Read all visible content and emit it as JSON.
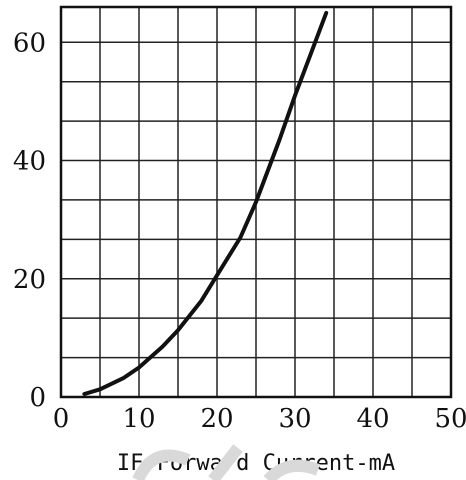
{
  "chart_data": {
    "type": "line",
    "title": "",
    "xlabel": "IF-Forward Current-mA",
    "ylabel": "",
    "xlim": [
      0,
      50
    ],
    "ylim": [
      0,
      66
    ],
    "x_ticks": [
      0,
      10,
      20,
      30,
      40,
      50
    ],
    "y_ticks": [
      0,
      20,
      40,
      60
    ],
    "x_grid_step": 5,
    "y_grid_step": 6.67,
    "grid": true,
    "series": [
      {
        "x": [
          3,
          5,
          8,
          10,
          13,
          15,
          18,
          20,
          23,
          25,
          28,
          30,
          32,
          34
        ],
        "y": [
          0.5,
          1.3,
          3.2,
          5,
          8.5,
          11.3,
          16.3,
          20.6,
          27,
          33,
          43.5,
          51,
          58,
          65
        ],
        "color": "#111111"
      }
    ]
  },
  "watermark_color": "#d9d9d9"
}
